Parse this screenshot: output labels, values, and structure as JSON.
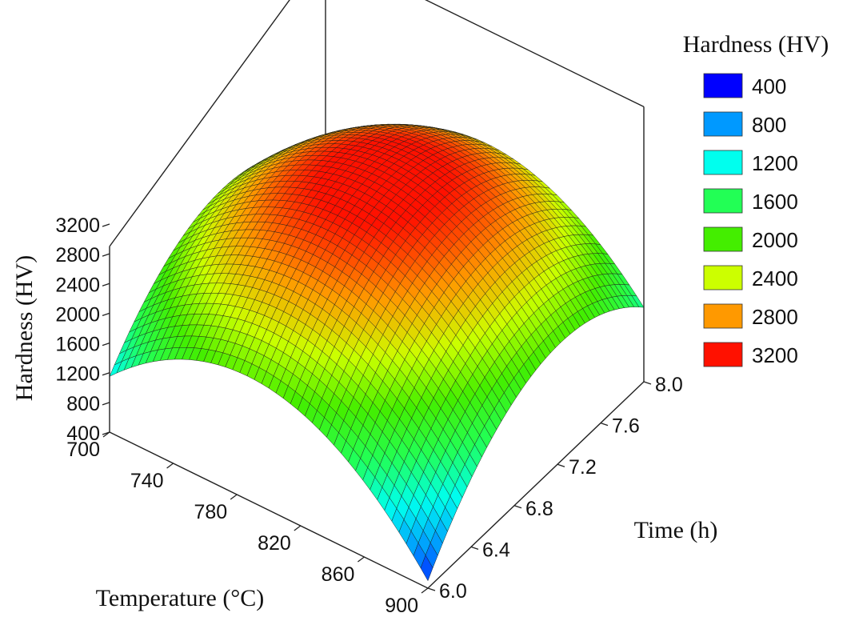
{
  "chart_data": {
    "type": "surface3d",
    "title": "",
    "x_axis": {
      "label": "Temperature (°C)",
      "range": [
        700,
        900
      ],
      "ticks": [
        "700",
        "740",
        "780",
        "820",
        "860",
        "900"
      ]
    },
    "y_axis": {
      "label": "Time (h)",
      "range": [
        6.0,
        8.0
      ],
      "ticks": [
        "6.0",
        "6.4",
        "6.8",
        "7.2",
        "7.6",
        "8.0"
      ]
    },
    "z_axis": {
      "label": "Hardness (HV)",
      "range": [
        400,
        3200
      ],
      "ticks": [
        "400",
        "800",
        "1200",
        "1600",
        "2000",
        "2400",
        "2800",
        "3200"
      ]
    },
    "surface": {
      "description": "quadratic response surface",
      "peak": {
        "temperature": 800,
        "time": 7.0,
        "hardness": 3300
      },
      "corners": [
        {
          "temperature": 700,
          "time": 6.0,
          "hardness": 1150
        },
        {
          "temperature": 900,
          "time": 6.0,
          "hardness": 500
        },
        {
          "temperature": 900,
          "time": 8.0,
          "hardness": 1400
        },
        {
          "temperature": 700,
          "time": 8.0,
          "hardness": 1300
        }
      ]
    },
    "legend": {
      "title": "Hardness (HV)",
      "position": "right",
      "items": [
        {
          "label": "400",
          "color": "#0000ff"
        },
        {
          "label": "800",
          "color": "#0099ff"
        },
        {
          "label": "1200",
          "color": "#00ffee"
        },
        {
          "label": "1600",
          "color": "#22ff55"
        },
        {
          "label": "2000",
          "color": "#44ee00"
        },
        {
          "label": "2400",
          "color": "#ccff00"
        },
        {
          "label": "2800",
          "color": "#ff9900"
        },
        {
          "label": "3200",
          "color": "#ff1100"
        }
      ]
    }
  }
}
